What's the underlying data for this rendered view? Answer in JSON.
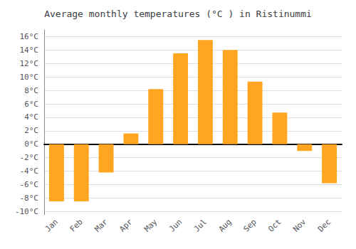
{
  "chart_data": {
    "type": "bar",
    "title": "Average monthly temperatures (°C ) in Ristinummi",
    "categories": [
      "Jan",
      "Feb",
      "Mar",
      "Apr",
      "May",
      "Jun",
      "Jul",
      "Aug",
      "Sep",
      "Oct",
      "Nov",
      "Dec"
    ],
    "values": [
      -8.5,
      -8.5,
      -4.2,
      1.6,
      8.2,
      13.5,
      15.5,
      14.0,
      9.3,
      4.7,
      -1.0,
      -5.8
    ],
    "color": "#FFA520",
    "ylim": [
      -10.5,
      17
    ],
    "yticks": [
      {
        "value": -10,
        "label": "-10°C"
      },
      {
        "value": -8,
        "label": "-8°C"
      },
      {
        "value": -6,
        "label": "-6°C"
      },
      {
        "value": -4,
        "label": "-4°C"
      },
      {
        "value": -2,
        "label": "-2°C"
      },
      {
        "value": 0,
        "label": "0°C"
      },
      {
        "value": 2,
        "label": "2°C"
      },
      {
        "value": 4,
        "label": "4°C"
      },
      {
        "value": 6,
        "label": "6°C"
      },
      {
        "value": 8,
        "label": "8°C"
      },
      {
        "value": 10,
        "label": "10°C"
      },
      {
        "value": 12,
        "label": "12°C"
      },
      {
        "value": 14,
        "label": "14°C"
      },
      {
        "value": 16,
        "label": "16°C"
      }
    ],
    "grid": true
  }
}
